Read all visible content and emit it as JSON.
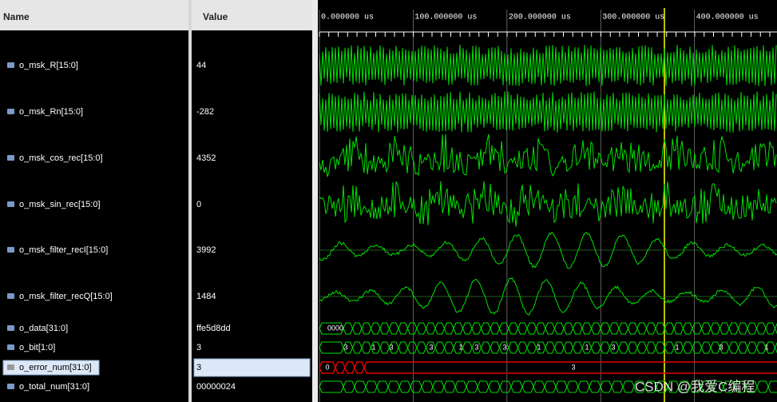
{
  "header": {
    "name": "Name",
    "value": "Value"
  },
  "time_axis": {
    "lim": [
      0,
      488
    ],
    "ticks": [
      {
        "value": 0,
        "label": "0.000000 us"
      },
      {
        "value": 100,
        "label": "100.000000 us"
      },
      {
        "value": 200,
        "label": "200.000000 us"
      },
      {
        "value": 300,
        "label": "300.000000 us"
      },
      {
        "value": 400,
        "label": "400.000000 us"
      }
    ]
  },
  "signals": [
    {
      "name": "o_msk_R[15:0]",
      "value": "44",
      "kind": "analog"
    },
    {
      "name": "o_msk_Rn[15:0]",
      "value": "-282",
      "kind": "analog"
    },
    {
      "name": "o_msk_cos_rec[15:0]",
      "value": "4352",
      "kind": "analog"
    },
    {
      "name": "o_msk_sin_rec[15:0]",
      "value": "0",
      "kind": "analog"
    },
    {
      "name": "o_msk_filter_recI[15:0]",
      "value": "3992",
      "kind": "analog"
    },
    {
      "name": "o_msk_filter_recQ[15:0]",
      "value": "1484",
      "kind": "analog"
    },
    {
      "name": "o_data[31:0]",
      "value": "ffe5d8dd",
      "kind": "bus",
      "labels": [
        "0000"
      ]
    },
    {
      "name": "o_bit[1:0]",
      "value": "3",
      "kind": "bus",
      "labels": [
        "3",
        "1",
        "3",
        "3",
        "1",
        "3",
        "3",
        "1",
        "1",
        "3",
        "1",
        "3",
        "1"
      ]
    },
    {
      "name": "o_error_num[31:0]",
      "value": "3",
      "kind": "bus",
      "selected": true,
      "labels": [
        "0",
        "3"
      ]
    },
    {
      "name": "o_total_num[31:0]",
      "value": "00000024",
      "kind": "bus"
    }
  ],
  "watermark": "CSDN @我爱C编程"
}
